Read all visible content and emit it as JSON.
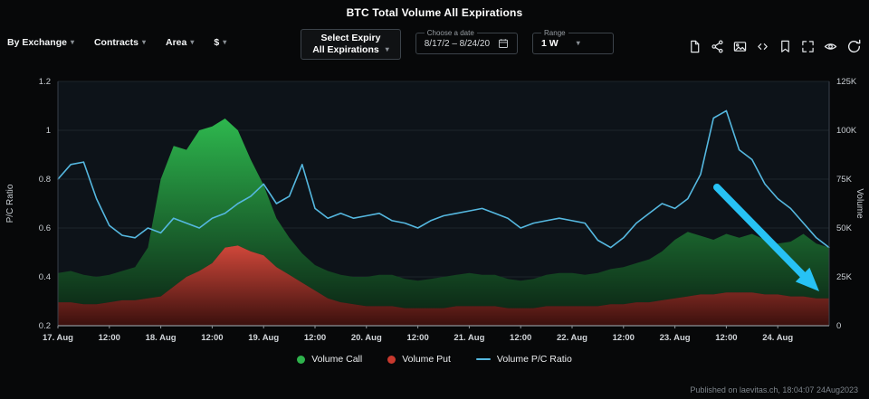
{
  "header": {
    "title": "BTC Total Volume All Expirations"
  },
  "toolbar": {
    "filters": [
      {
        "label": "By Exchange"
      },
      {
        "label": "Contracts"
      },
      {
        "label": "Area"
      },
      {
        "label": "$"
      }
    ],
    "expiry": {
      "label": "Select Expiry",
      "value": "All Expirations"
    },
    "date_range": {
      "label": "Choose a date",
      "value": "8/17/2 – 8/24/20"
    },
    "range": {
      "label": "Range",
      "value": "1 W"
    },
    "icons": [
      "file-export-icon",
      "share-icon",
      "image-download-icon",
      "embed-icon",
      "bookmark-icon",
      "fullscreen-icon",
      "eye-icon",
      "refresh-icon"
    ]
  },
  "chart_data": {
    "type": "area",
    "title": "BTC Total Volume All Expirations",
    "stacked": true,
    "grid": true,
    "volume_unit": "K",
    "time_step_hours": 3,
    "left_axis": {
      "label": "P/C Ratio",
      "min": 0.2,
      "max": 1.2,
      "ticks": [
        {
          "v": 0.2,
          "label": "0.2"
        },
        {
          "v": 0.4,
          "label": "0.4"
        },
        {
          "v": 0.6,
          "label": "0.6"
        },
        {
          "v": 0.8,
          "label": "0.8"
        },
        {
          "v": 1.0,
          "label": "1"
        },
        {
          "v": 1.2,
          "label": "1.2"
        }
      ]
    },
    "right_axis": {
      "label": "Volume",
      "min": 0,
      "max": 125,
      "ticks": [
        {
          "v": 0,
          "label": "0"
        },
        {
          "v": 25,
          "label": "25K"
        },
        {
          "v": 50,
          "label": "50K"
        },
        {
          "v": 75,
          "label": "75K"
        },
        {
          "v": 100,
          "label": "100K"
        },
        {
          "v": 125,
          "label": "125K"
        }
      ]
    },
    "x_ticks": [
      {
        "i": 0,
        "label": "17. Aug"
      },
      {
        "i": 4,
        "label": "12:00"
      },
      {
        "i": 8,
        "label": "18. Aug"
      },
      {
        "i": 12,
        "label": "12:00"
      },
      {
        "i": 16,
        "label": "19. Aug"
      },
      {
        "i": 20,
        "label": "12:00"
      },
      {
        "i": 24,
        "label": "20. Aug"
      },
      {
        "i": 28,
        "label": "12:00"
      },
      {
        "i": 32,
        "label": "21. Aug"
      },
      {
        "i": 36,
        "label": "12:00"
      },
      {
        "i": 40,
        "label": "22. Aug"
      },
      {
        "i": 44,
        "label": "12:00"
      },
      {
        "i": 48,
        "label": "23. Aug"
      },
      {
        "i": 52,
        "label": "12:00"
      },
      {
        "i": 56,
        "label": "24. Aug"
      }
    ],
    "series": [
      {
        "name": "Volume Call",
        "type": "area-stacked",
        "axis": "right",
        "color": "#2eb24c",
        "gradient": [
          "#2fbe50",
          "#0d2c17"
        ],
        "values": [
          15,
          16,
          15,
          14,
          14,
          15,
          17,
          26,
          60,
          72,
          65,
          72,
          70,
          66,
          59,
          47,
          36,
          25,
          19,
          15,
          13,
          14,
          14,
          14,
          15,
          16,
          16,
          15,
          14,
          15,
          16,
          16,
          17,
          16,
          16,
          15,
          14,
          15,
          16,
          17,
          17,
          16,
          17,
          18,
          19,
          20,
          22,
          25,
          30,
          33,
          30,
          28,
          30,
          28,
          30,
          28,
          26,
          28,
          32,
          28,
          26
        ]
      },
      {
        "name": "Volume Put",
        "type": "area-stacked",
        "axis": "right",
        "color": "#c8392e",
        "gradient": [
          "#d6493b",
          "#3c100d"
        ],
        "values": [
          12,
          12,
          11,
          11,
          12,
          13,
          13,
          14,
          15,
          20,
          25,
          28,
          32,
          40,
          41,
          38,
          36,
          30,
          26,
          22,
          18,
          14,
          12,
          11,
          10,
          10,
          10,
          9,
          9,
          9,
          9,
          10,
          10,
          10,
          10,
          9,
          9,
          9,
          10,
          10,
          10,
          10,
          10,
          11,
          11,
          12,
          12,
          13,
          14,
          15,
          16,
          16,
          17,
          17,
          17,
          16,
          16,
          15,
          15,
          14,
          14
        ]
      },
      {
        "name": "Volume P/C Ratio",
        "type": "line",
        "axis": "left",
        "color": "#55b8e0",
        "values": [
          0.8,
          0.86,
          0.87,
          0.72,
          0.61,
          0.57,
          0.56,
          0.6,
          0.58,
          0.64,
          0.62,
          0.6,
          0.64,
          0.66,
          0.7,
          0.73,
          0.78,
          0.7,
          0.73,
          0.86,
          0.68,
          0.64,
          0.66,
          0.64,
          0.65,
          0.66,
          0.63,
          0.62,
          0.6,
          0.63,
          0.65,
          0.66,
          0.67,
          0.68,
          0.66,
          0.64,
          0.6,
          0.62,
          0.63,
          0.64,
          0.63,
          0.62,
          0.55,
          0.52,
          0.56,
          0.62,
          0.66,
          0.7,
          0.68,
          0.72,
          0.82,
          1.05,
          1.08,
          0.92,
          0.88,
          0.78,
          0.72,
          0.68,
          0.62,
          0.56,
          0.52
        ]
      }
    ],
    "annotation_arrow": {
      "color": "#27c2f4",
      "direction": "down-right"
    }
  },
  "legend": {
    "items": [
      {
        "label": "Volume Call",
        "color": "#2eb24c",
        "marker": "circle"
      },
      {
        "label": "Volume Put",
        "color": "#c8392e",
        "marker": "circle"
      },
      {
        "label": "Volume P/C Ratio",
        "color": "#55b8e0",
        "marker": "line"
      }
    ]
  },
  "footer": {
    "caption": "Published on laevitas.ch, 18:04:07 24Aug2023"
  }
}
